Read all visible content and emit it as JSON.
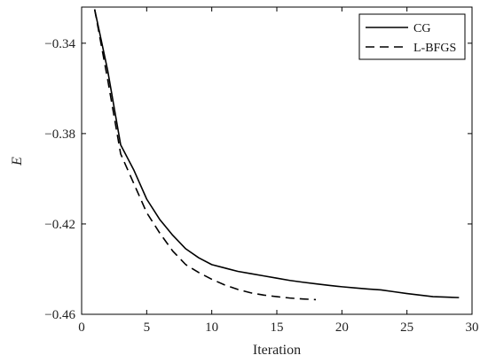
{
  "chart_data": {
    "type": "line",
    "xlabel": "Iteration",
    "ylabel": "E",
    "xlim": [
      0,
      30
    ],
    "ylim": [
      -0.46,
      -0.324
    ],
    "x_ticks": [
      0,
      5,
      10,
      15,
      20,
      25,
      30
    ],
    "x_tick_labels": [
      "0",
      "5",
      "10",
      "15",
      "20",
      "25",
      "30"
    ],
    "y_ticks": [
      -0.34,
      -0.38,
      -0.42,
      -0.46
    ],
    "y_tick_labels": [
      "−0.34",
      "−0.38",
      "−0.42",
      "−0.46"
    ],
    "grid": false,
    "legend_position": "top-right",
    "series": [
      {
        "name": "CG",
        "style": "solid",
        "color": "#000000",
        "x": [
          1,
          2,
          3,
          4,
          5,
          6,
          7,
          8,
          9,
          10,
          11,
          12,
          13,
          14,
          15,
          16,
          17,
          18,
          19,
          20,
          21,
          22,
          23,
          24,
          25,
          26,
          27,
          28,
          29
        ],
        "y": [
          -0.325,
          -0.352,
          -0.385,
          -0.396,
          -0.409,
          -0.418,
          -0.425,
          -0.431,
          -0.435,
          -0.438,
          -0.4395,
          -0.441,
          -0.442,
          -0.443,
          -0.444,
          -0.445,
          -0.4458,
          -0.4465,
          -0.4472,
          -0.4478,
          -0.4483,
          -0.4488,
          -0.4492,
          -0.45,
          -0.4508,
          -0.4515,
          -0.4522,
          -0.4524,
          -0.4526
        ]
      },
      {
        "name": "L-BFGS",
        "style": "dashed",
        "color": "#000000",
        "x": [
          1,
          2,
          3,
          4,
          5,
          6,
          7,
          8,
          9,
          10,
          11,
          12,
          13,
          14,
          15,
          16,
          17,
          18
        ],
        "y": [
          -0.325,
          -0.356,
          -0.389,
          -0.402,
          -0.415,
          -0.424,
          -0.432,
          -0.438,
          -0.4415,
          -0.4445,
          -0.447,
          -0.449,
          -0.4505,
          -0.4515,
          -0.4522,
          -0.4528,
          -0.4532,
          -0.4535
        ]
      }
    ]
  }
}
